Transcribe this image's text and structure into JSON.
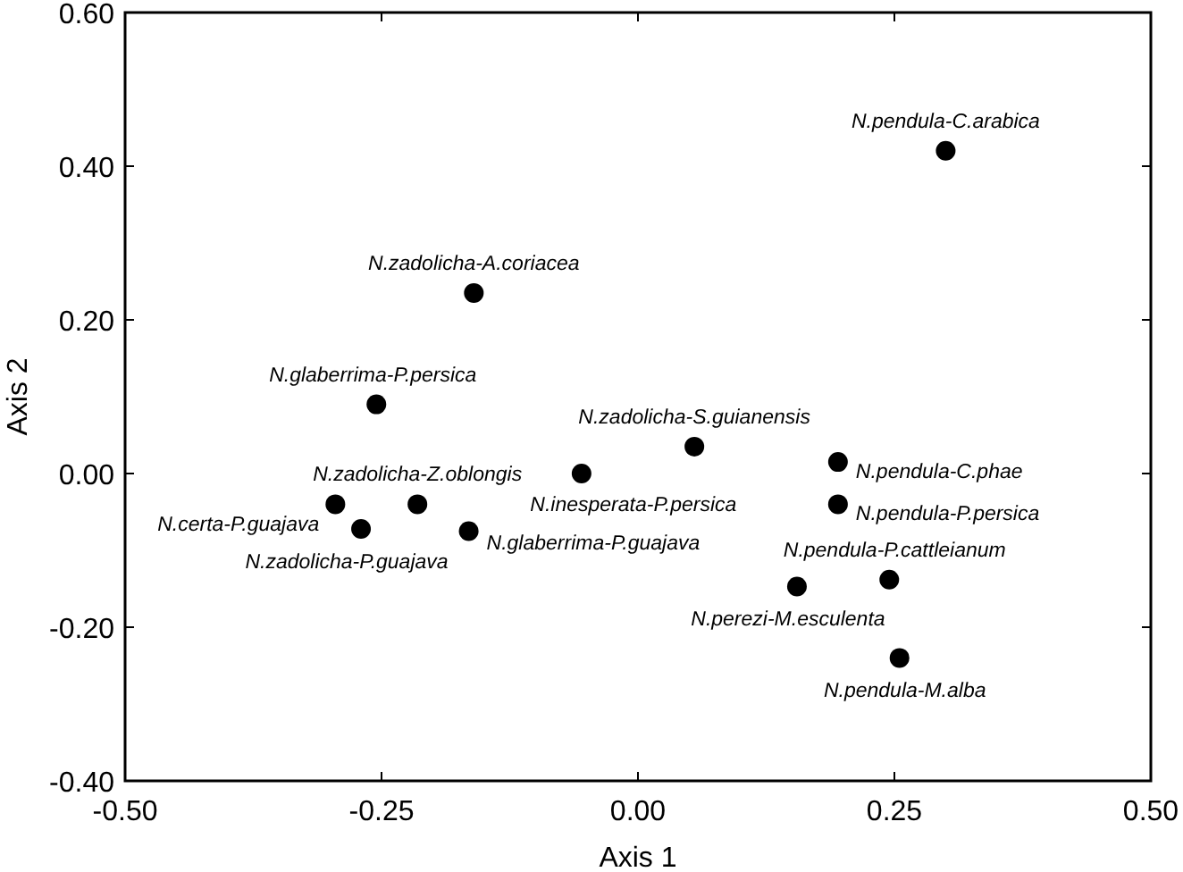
{
  "chart_data": {
    "type": "scatter",
    "xlabel": "Axis 1",
    "ylabel": "Axis 2",
    "xlim": [
      -0.5,
      0.5
    ],
    "xticks": [
      {
        "value": -0.5,
        "label": "-0.50"
      },
      {
        "value": -0.25,
        "label": "-0.25"
      },
      {
        "value": 0,
        "label": "0.00"
      },
      {
        "value": 0.25,
        "label": "0.25"
      },
      {
        "value": 0.5,
        "label": "0.50"
      }
    ],
    "ylim": [
      -0.4,
      0.6
    ],
    "yticks": [
      {
        "value": -0.4,
        "label": "-0.40"
      },
      {
        "value": -0.2,
        "label": "-0.20"
      },
      {
        "value": 0,
        "label": "0.00"
      },
      {
        "value": 0.2,
        "label": "0.20"
      },
      {
        "value": 0.4,
        "label": "0.40"
      },
      {
        "value": 0.6,
        "label": "0.60"
      }
    ],
    "grid": false,
    "marker": "circle",
    "series": [
      {
        "color": "#000000",
        "x": [
          0.3,
          -0.16,
          -0.255,
          0.055,
          -0.055,
          0.195,
          0.195,
          -0.215,
          -0.295,
          -0.27,
          -0.165,
          0.245,
          0.155,
          0.255
        ],
        "values": [
          0.42,
          0.235,
          0.09,
          0.035,
          0.0,
          0.015,
          -0.04,
          -0.04,
          -0.04,
          -0.072,
          -0.075,
          -0.138,
          -0.147,
          -0.24
        ]
      }
    ],
    "annotations": [
      {
        "text": "N.pendula-C.arabica",
        "x": 0.3,
        "y": 0.42
      },
      {
        "text": "N.zadolicha-A.coriacea",
        "x": -0.16,
        "y": 0.235
      },
      {
        "text": "N.glaberrima-P.persica",
        "x": -0.255,
        "y": 0.09
      },
      {
        "text": "N.zadolicha-S.guianensis",
        "x": 0.055,
        "y": 0.035
      },
      {
        "text": "N.inesperata-P.persica",
        "x": -0.055,
        "y": 0.0
      },
      {
        "text": "N.pendula-C.phae",
        "x": 0.195,
        "y": 0.015
      },
      {
        "text": "N.pendula-P.persica",
        "x": 0.195,
        "y": -0.04
      },
      {
        "text": "N.zadolicha-Z.oblongis",
        "x": -0.215,
        "y": -0.04
      },
      {
        "text": "N.certa-P.guajava",
        "x": -0.295,
        "y": -0.04
      },
      {
        "text": "N.zadolicha-P.guajava",
        "x": -0.27,
        "y": -0.072
      },
      {
        "text": "N.glaberrima-P.guajava",
        "x": -0.165,
        "y": -0.075
      },
      {
        "text": "N.pendula-P.cattleianum",
        "x": 0.245,
        "y": -0.138
      },
      {
        "text": "N.perezi-M.esculenta",
        "x": 0.155,
        "y": -0.147
      },
      {
        "text": "N.pendula-M.alba",
        "x": 0.255,
        "y": -0.24
      }
    ]
  }
}
